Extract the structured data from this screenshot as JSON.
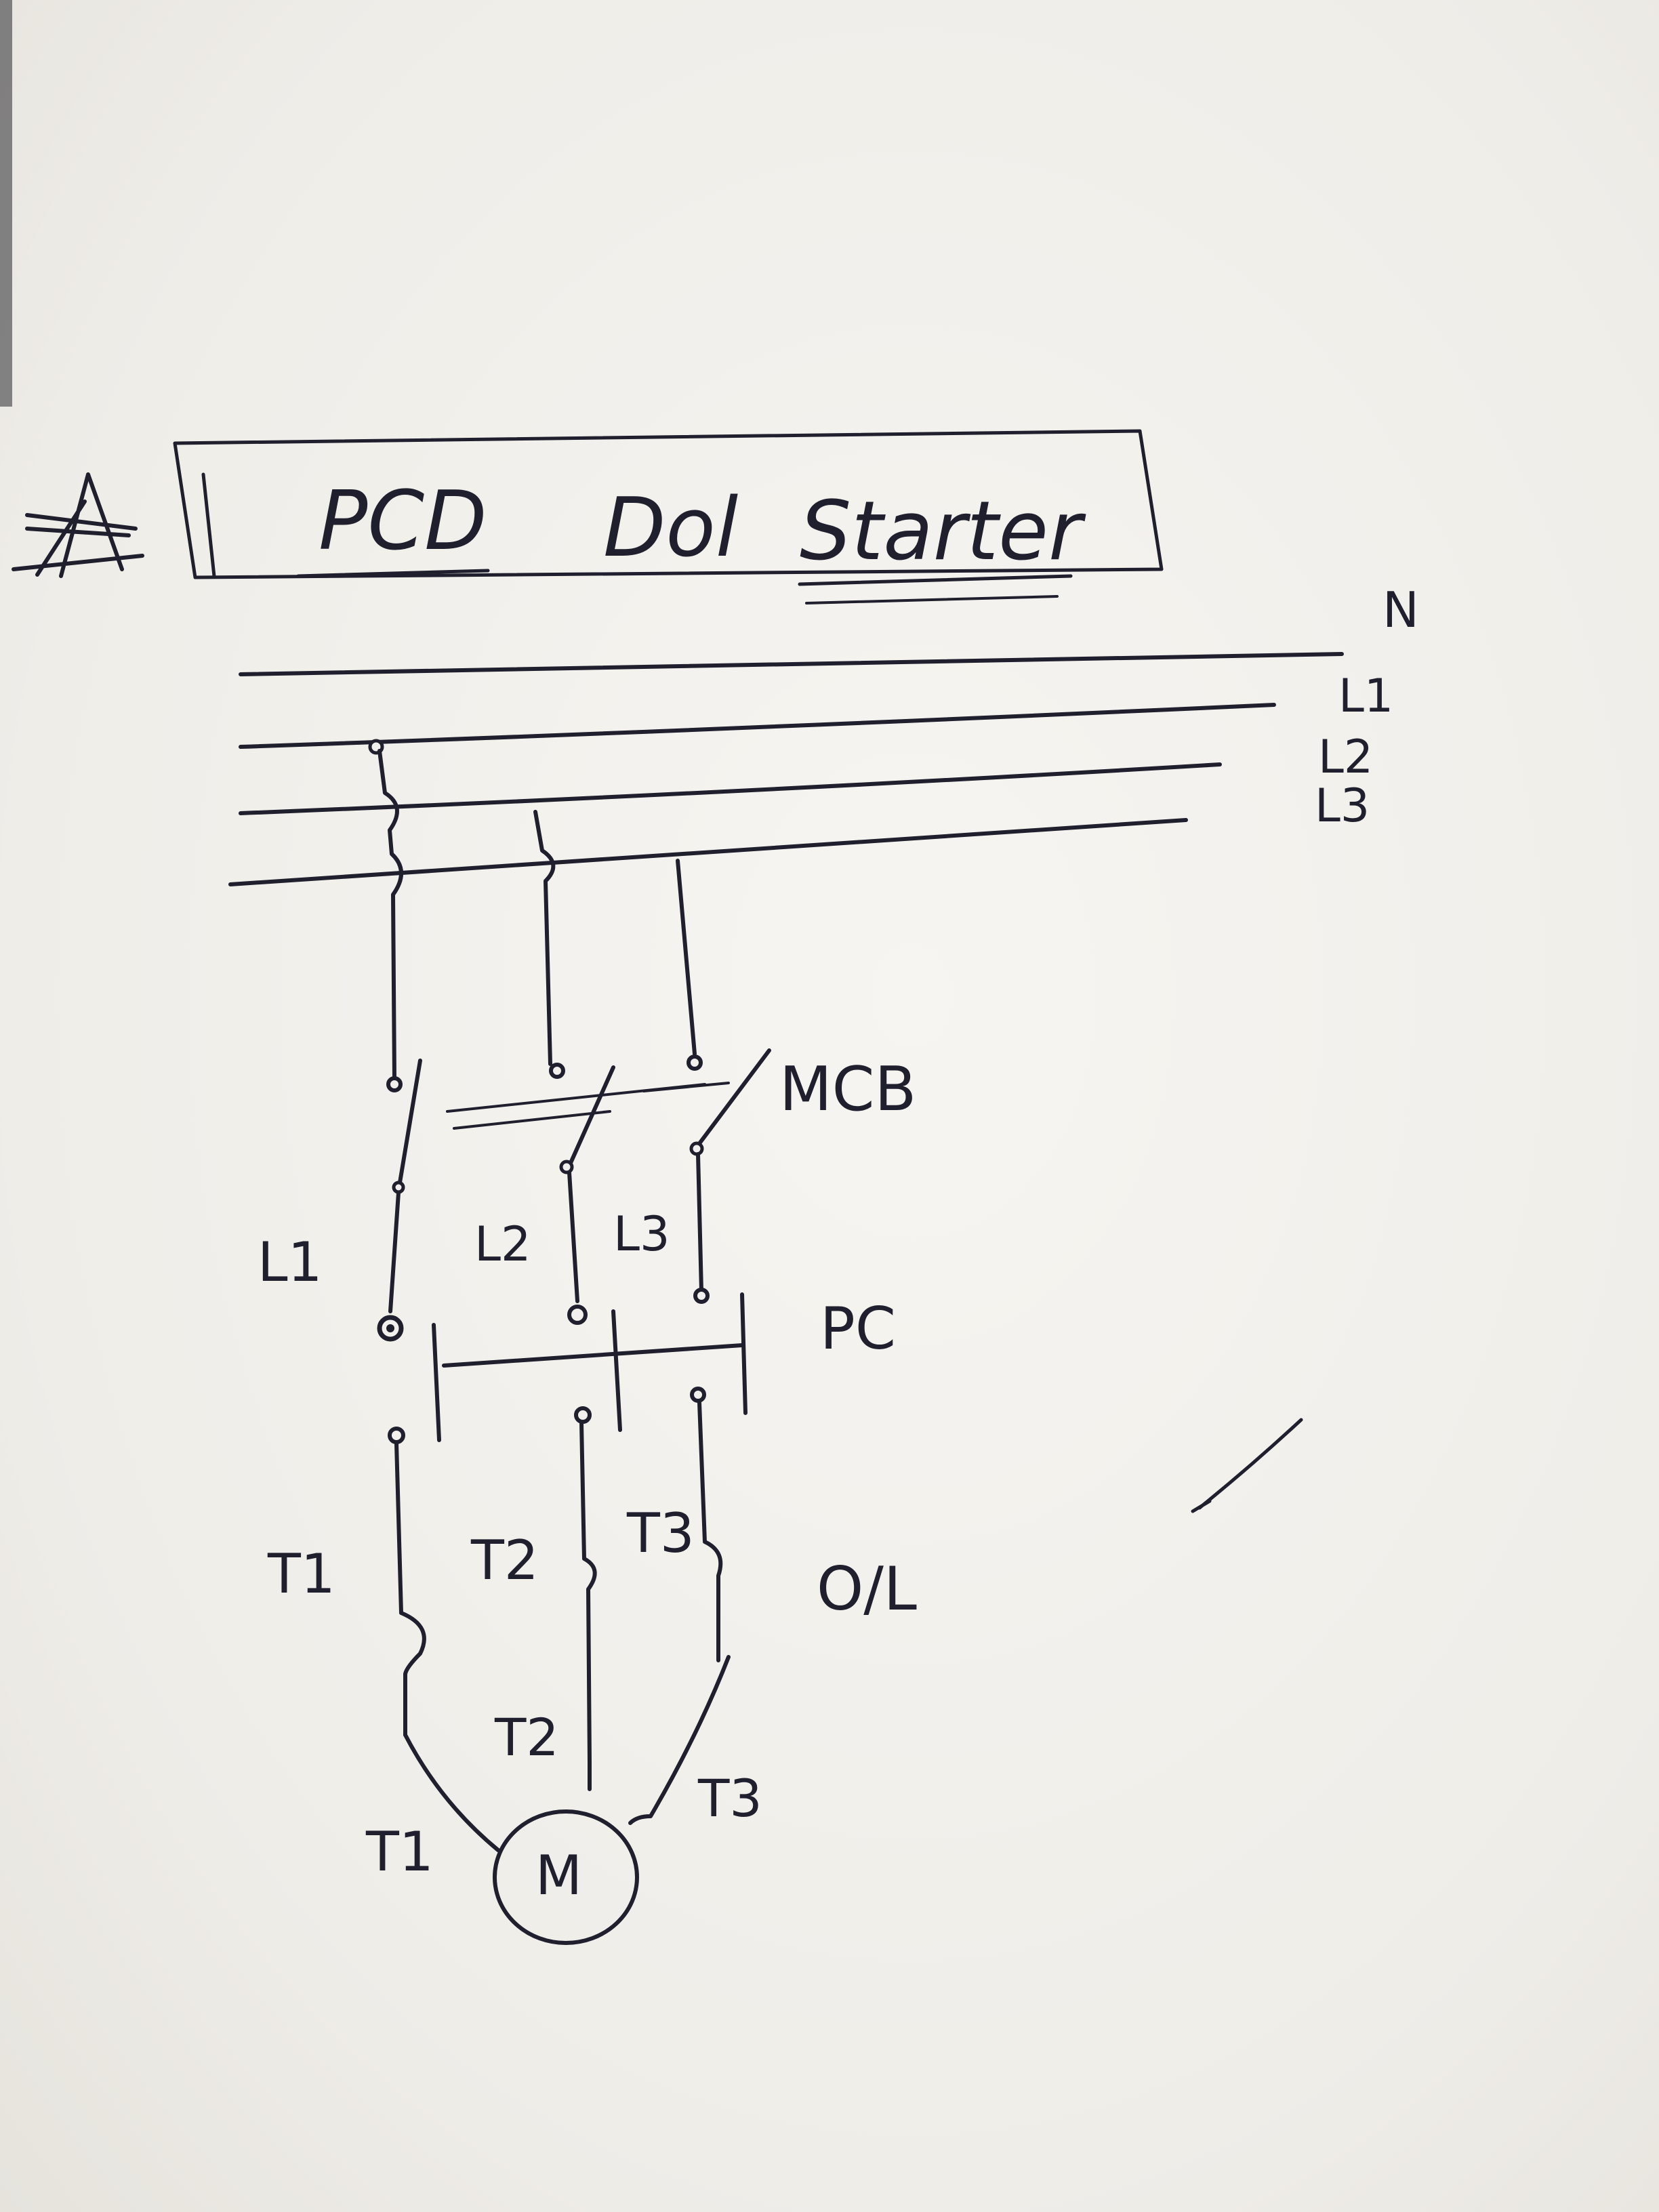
{
  "title": {
    "star": "☆",
    "word1": "PCD",
    "word2": "Dol",
    "word3": "Starter"
  },
  "supply": {
    "n": "N",
    "l1": "L1",
    "l2": "L2",
    "l3": "L3"
  },
  "mcb_label": "MCB",
  "pc_label": "PC",
  "ol_label": "O/L",
  "line_labels": {
    "l1": "L1",
    "l2": "L2",
    "l3": "L3"
  },
  "terminal_labels": {
    "t1": "T1",
    "t2": "T2",
    "t3": "T3"
  },
  "motor_terminal_labels": {
    "t1": "T1",
    "t2": "T2",
    "t3": "T3"
  },
  "motor_label": "M",
  "check": "✓",
  "colors": {
    "ink": "#1f1f2e",
    "paper": "#f2f0ec"
  }
}
